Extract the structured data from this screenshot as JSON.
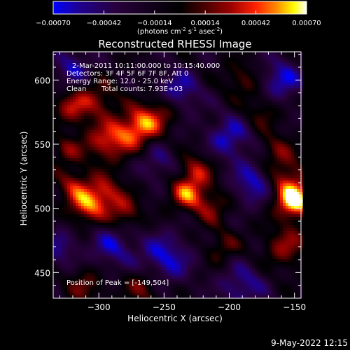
{
  "chart_data": {
    "type": "heatmap",
    "title": "Reconstructed RHESSI Image",
    "xlabel": "Heliocentric X (arcsec)",
    "ylabel": "Heliocentric Y (arcsec)",
    "xlim": [
      -335,
      -145
    ],
    "ylim": [
      430,
      622
    ],
    "xticks": [
      -300,
      -250,
      -200,
      -150
    ],
    "yticks": [
      450,
      500,
      550,
      600
    ],
    "colorbar": {
      "ticks": [
        -0.0007,
        -0.00042,
        -0.00014,
        0.00014,
        0.00042,
        0.0007
      ],
      "tick_labels": [
        "-0.00070",
        "-0.00042",
        "-0.00014",
        "0.00014",
        "0.00042",
        "0.00070"
      ],
      "unit_prefix": "(photons cm",
      "unit_sup1": "-2",
      "unit_mid": " s",
      "unit_sup2": "-1",
      "unit_mid2": " asec",
      "unit_sup3": "-2",
      "unit_suffix": ")",
      "colormap": [
        "#0000ff",
        "#20008a",
        "#28003c",
        "#000000",
        "#4a0000",
        "#9a0000",
        "#ff2200",
        "#ff8800",
        "#ffff00",
        "#ffffff"
      ]
    },
    "annotations": {
      "time": "2-Mar-2011 10:11:00.000 to 10:15:40.000",
      "detectors": "Detectors: 3F 4F 5F 6F 7F 8F, Att 0",
      "energy": "Energy Range: 12.0 - 25.0 keV",
      "clean": "Clean",
      "counts": "Total counts: 7.93E+03",
      "peak": "Position of Peak = [-149,504]"
    },
    "peak": [
      -149,
      504
    ],
    "blobs": [
      {
        "x": -150,
        "y": 504,
        "amp": 0.00072,
        "s": 9
      },
      {
        "x": -156,
        "y": 520,
        "amp": 0.0005,
        "s": 12
      },
      {
        "x": -157,
        "y": 470,
        "amp": 0.00038,
        "s": 12
      },
      {
        "x": -165,
        "y": 545,
        "amp": 0.0003,
        "s": 10
      },
      {
        "x": -267,
        "y": 565,
        "amp": 0.00062,
        "s": 10
      },
      {
        "x": -285,
        "y": 555,
        "amp": 0.00045,
        "s": 11
      },
      {
        "x": -250,
        "y": 578,
        "amp": 0.0004,
        "s": 10
      },
      {
        "x": -300,
        "y": 550,
        "amp": 0.0003,
        "s": 10
      },
      {
        "x": -310,
        "y": 502,
        "amp": 0.00055,
        "s": 10
      },
      {
        "x": -295,
        "y": 512,
        "amp": 0.00045,
        "s": 10
      },
      {
        "x": -280,
        "y": 496,
        "amp": 0.00038,
        "s": 9
      },
      {
        "x": -320,
        "y": 520,
        "amp": 0.00035,
        "s": 9
      },
      {
        "x": -233,
        "y": 512,
        "amp": 0.00055,
        "s": 9
      },
      {
        "x": -225,
        "y": 530,
        "amp": 0.00042,
        "s": 9
      },
      {
        "x": -215,
        "y": 502,
        "amp": 0.00035,
        "s": 10
      },
      {
        "x": -320,
        "y": 578,
        "amp": 0.00042,
        "s": 10
      },
      {
        "x": -300,
        "y": 585,
        "amp": 0.00035,
        "s": 10
      },
      {
        "x": -325,
        "y": 545,
        "amp": 0.0003,
        "s": 8
      },
      {
        "x": -190,
        "y": 600,
        "amp": 0.0003,
        "s": 10
      },
      {
        "x": -175,
        "y": 575,
        "amp": 0.00028,
        "s": 9
      },
      {
        "x": -205,
        "y": 470,
        "amp": 0.00028,
        "s": 9
      },
      {
        "x": -265,
        "y": 440,
        "amp": 0.00035,
        "s": 11
      },
      {
        "x": -310,
        "y": 440,
        "amp": 0.0003,
        "s": 10
      },
      {
        "x": -240,
        "y": 590,
        "amp": -0.0005,
        "s": 12
      },
      {
        "x": -180,
        "y": 520,
        "amp": -0.0005,
        "s": 12
      },
      {
        "x": -200,
        "y": 555,
        "amp": -0.00045,
        "s": 12
      },
      {
        "x": -250,
        "y": 460,
        "amp": -0.0005,
        "s": 14
      },
      {
        "x": -290,
        "y": 470,
        "amp": -0.0004,
        "s": 12
      },
      {
        "x": -160,
        "y": 600,
        "amp": -0.00045,
        "s": 12
      },
      {
        "x": -320,
        "y": 610,
        "amp": -0.0004,
        "s": 10
      },
      {
        "x": -190,
        "y": 440,
        "amp": -0.0004,
        "s": 12
      },
      {
        "x": -255,
        "y": 535,
        "amp": -0.0003,
        "s": 10
      },
      {
        "x": -330,
        "y": 470,
        "amp": -0.00035,
        "s": 10
      }
    ]
  },
  "footer": {
    "timestamp": "9-May-2022 12:15"
  }
}
